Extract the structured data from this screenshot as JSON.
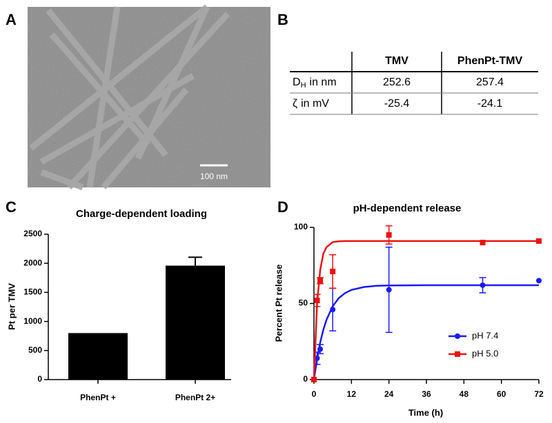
{
  "panel_labels": {
    "a": "A",
    "b": "B",
    "c": "C",
    "d": "D"
  },
  "micrograph": {
    "scale_bar_label": "100 nm"
  },
  "table": {
    "columns": [
      "TMV",
      "PhenPt-TMV"
    ],
    "rows": [
      {
        "symbol": "D",
        "subscript": "H",
        "unit_text": "in nm",
        "values": [
          252.6,
          257.4
        ]
      },
      {
        "symbol": "ζ",
        "unit_text": "in mV",
        "values": [
          -25.4,
          -24.1
        ]
      }
    ]
  },
  "chart_data": [
    {
      "type": "bar",
      "title": "Charge-dependent loading",
      "ylabel": "Pt per TMV",
      "categories": [
        "PhenPt +",
        "PhenPt 2+"
      ],
      "values": [
        800,
        1960
      ],
      "errors": [
        null,
        145
      ],
      "color": "#000000",
      "ylim": [
        0,
        2500
      ],
      "yticks": [
        0,
        500,
        1000,
        1500,
        2000,
        2500
      ]
    },
    {
      "type": "line",
      "title": "pH-dependent release",
      "xlabel": "Time (h)",
      "ylabel": "Percent Pt release",
      "xlim": [
        0,
        72
      ],
      "xticks": [
        0,
        12,
        24,
        36,
        48,
        60,
        72
      ],
      "ylim": [
        0,
        100
      ],
      "yticks": [
        0,
        50,
        100
      ],
      "legend": "lower right",
      "series": [
        {
          "name": "pH 7.4",
          "color": "#1a1aff",
          "marker": "circle",
          "x": [
            0,
            1,
            2,
            6,
            24,
            54,
            72
          ],
          "values": [
            0,
            14,
            20,
            46,
            59,
            62,
            65
          ],
          "errors": [
            0,
            4,
            3,
            14,
            28,
            5,
            null
          ],
          "fit": {
            "x": [
              0,
              1,
              2,
              3,
              4,
              6,
              8,
              10,
              12,
              16,
              20,
              24,
              36,
              48,
              60,
              72
            ],
            "values": [
              0,
              13.7,
              24.4,
              32.7,
              39.2,
              48.2,
              53.6,
              56.9,
              58.9,
              60.8,
              61.6,
              61.8,
              62,
              62,
              62,
              62
            ]
          }
        },
        {
          "name": "pH 5.0",
          "color": "#ee1111",
          "marker": "square",
          "x": [
            0,
            1,
            2,
            6,
            24,
            54,
            72
          ],
          "values": [
            0,
            52,
            65,
            71,
            95,
            90,
            91
          ],
          "errors": [
            0,
            4,
            2,
            11,
            6,
            null,
            null
          ],
          "fit": {
            "x": [
              0,
              1,
              2,
              3,
              4,
              6,
              8,
              10,
              12,
              16,
              20,
              24,
              36,
              48,
              60,
              72
            ],
            "values": [
              0,
              50.1,
              72.1,
              82.7,
              86.9,
              90.3,
              90.85,
              91,
              91,
              91,
              91,
              91,
              91,
              91,
              91,
              91
            ]
          }
        }
      ]
    }
  ]
}
